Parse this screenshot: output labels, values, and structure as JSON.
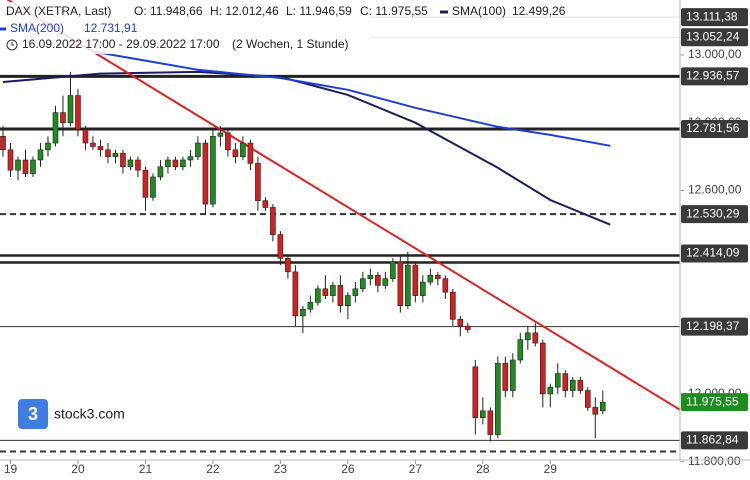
{
  "chart_data": {
    "type": "candlestick",
    "title": "DAX (XETRA, Last)",
    "ohlc_labels": [
      "O: 11.948,66",
      "H: 12.012,46",
      "L: 11.946,59",
      "C: 11.975,55"
    ],
    "range_label": "16.09.2022 17:00 - 29.09.2022 17:00",
    "period_label": "(2 Wochen, 1 Stunde)",
    "logo": "stock3.com",
    "xlim": [
      -0.4,
      90.3
    ],
    "ylim": [
      11805,
      13162
    ],
    "xticks": [
      {
        "value": 1,
        "label": "19"
      },
      {
        "value": 10,
        "label": "20"
      },
      {
        "value": 19,
        "label": "21"
      },
      {
        "value": 28,
        "label": "22"
      },
      {
        "value": 37,
        "label": "23"
      },
      {
        "value": 46,
        "label": "26"
      },
      {
        "value": 55,
        "label": "27"
      },
      {
        "value": 64,
        "label": "28"
      },
      {
        "value": 73,
        "label": "29"
      }
    ],
    "yticks": [
      {
        "value": 13000,
        "label": "13.000,00"
      },
      {
        "value": 12800,
        "label": "12.800,00"
      },
      {
        "value": 12600,
        "label": "12.600,00"
      },
      {
        "value": 12000,
        "label": "12.000,00"
      },
      {
        "value": 11800,
        "label": "11.800,00"
      }
    ],
    "up_color": "#1e8c1e",
    "down_color": "#d42020",
    "open": [
      12760,
      12720,
      12660,
      12690,
      12650,
      12690,
      12720,
      12740,
      12830,
      12800,
      12880,
      12780,
      12740,
      12730,
      12720,
      12700,
      12710,
      12670,
      12690,
      12660,
      12580,
      12640,
      12670,
      12690,
      12670,
      12690,
      12700,
      12740,
      12560,
      12760,
      12770,
      12720,
      12700,
      12740,
      12680,
      12570,
      12550,
      12470,
      12400,
      12360,
      12230,
      12250,
      12270,
      12310,
      12290,
      12320,
      12260,
      12290,
      12310,
      12340,
      12350,
      12320,
      12340,
      12390,
      12260,
      12380,
      12290,
      12330,
      12350,
      12340,
      12300,
      12220,
      12200,
      12080,
      11930,
      11950,
      11880,
      12090,
      12010,
      12100,
      12160,
      12180,
      12150,
      12000,
      12020,
      12060,
      12010,
      12040,
      12010,
      11960,
      11950
    ],
    "high": [
      12790,
      12740,
      12700,
      12720,
      12700,
      12740,
      12760,
      12850,
      12880,
      12950,
      12900,
      12790,
      12760,
      12750,
      12740,
      12720,
      12720,
      12700,
      12700,
      12670,
      12650,
      12690,
      12700,
      12700,
      12700,
      12720,
      12760,
      12750,
      12780,
      12790,
      12780,
      12740,
      12760,
      12750,
      12700,
      12580,
      12560,
      12480,
      12410,
      12380,
      12260,
      12290,
      12320,
      12350,
      12330,
      12350,
      12300,
      12330,
      12360,
      12370,
      12360,
      12360,
      12400,
      12410,
      12420,
      12390,
      12350,
      12370,
      12360,
      12350,
      12310,
      12230,
      12210,
      12100,
      11990,
      11960,
      12110,
      12110,
      12120,
      12180,
      12200,
      12210,
      12160,
      12030,
      12090,
      12070,
      12050,
      12050,
      12020,
      11990,
      12010
    ],
    "low": [
      12700,
      12640,
      12630,
      12640,
      12640,
      12670,
      12700,
      12730,
      12760,
      12790,
      12760,
      12720,
      12720,
      12700,
      12680,
      12680,
      12650,
      12660,
      12640,
      12540,
      12570,
      12630,
      12650,
      12660,
      12660,
      12670,
      12690,
      12530,
      12550,
      12730,
      12700,
      12680,
      12690,
      12660,
      12540,
      12540,
      12450,
      12380,
      12340,
      12200,
      12180,
      12240,
      12260,
      12280,
      12270,
      12240,
      12220,
      12270,
      12300,
      12320,
      12300,
      12310,
      12330,
      12240,
      12250,
      12270,
      12270,
      12320,
      12320,
      12280,
      12200,
      12170,
      12180,
      11880,
      11910,
      11860,
      11870,
      11990,
      11990,
      12090,
      12130,
      12140,
      11960,
      11960,
      12000,
      11990,
      11990,
      12000,
      11950,
      11870,
      11940
    ],
    "close": [
      12720,
      12660,
      12690,
      12650,
      12690,
      12720,
      12740,
      12830,
      12800,
      12880,
      12780,
      12740,
      12730,
      12720,
      12700,
      12710,
      12670,
      12690,
      12660,
      12580,
      12640,
      12670,
      12690,
      12670,
      12690,
      12700,
      12740,
      12560,
      12760,
      12770,
      12720,
      12700,
      12740,
      12680,
      12570,
      12550,
      12470,
      12400,
      12360,
      12230,
      12250,
      12270,
      12310,
      12290,
      12320,
      12260,
      12290,
      12310,
      12340,
      12350,
      12320,
      12340,
      12390,
      12260,
      12380,
      12290,
      12330,
      12350,
      12340,
      12300,
      12220,
      12200,
      12190,
      11930,
      11950,
      11880,
      12090,
      12010,
      12100,
      12160,
      12180,
      12150,
      12000,
      12020,
      12060,
      12010,
      12040,
      12010,
      11960,
      11940,
      11975.55
    ],
    "series": [
      {
        "name": "SMA(100)",
        "color": "#1c1c5e",
        "last_label": "12.499,26",
        "x": [
          0,
          13,
          26,
          37,
          46,
          55,
          66,
          73,
          81
        ],
        "values": [
          12920,
          12945,
          12950,
          12935,
          12882,
          12800,
          12667,
          12572,
          12499.26
        ]
      },
      {
        "name": "SMA(200)",
        "color": "#1f3fd0",
        "last_label": "12.731,91",
        "x": [
          12,
          26,
          37,
          46,
          55,
          66,
          73,
          81
        ],
        "values": [
          13010,
          12956,
          12932,
          12897,
          12844,
          12788,
          12764,
          12731.91
        ]
      }
    ],
    "trendline": {
      "color": "#e02020",
      "x": [
        -0.4,
        90.3
      ],
      "values": [
        13177,
        11953
      ]
    },
    "levels": [
      {
        "value": 13111.38,
        "label": "13.111,38",
        "style": "thin",
        "start": 49
      },
      {
        "value": 13052.24,
        "label": "13.052,24",
        "style": "thin",
        "start": 49
      },
      {
        "value": 12936.57,
        "label": "12.936,57",
        "style": "thick"
      },
      {
        "value": 12781.56,
        "label": "12.781,56",
        "style": "thick"
      },
      {
        "value": 12530.29,
        "label": "12.530,29",
        "style": "dashed"
      },
      {
        "value": 12414.09,
        "label": "12.414,09",
        "style": "double"
      },
      {
        "value": 12198.37,
        "label": "12.198,37",
        "style": "thin"
      },
      {
        "value": 11975.55,
        "label": "11.975,55",
        "style": "price"
      },
      {
        "value": 11862.84,
        "label": "11.862,84",
        "style": "thin"
      },
      {
        "value": 11830,
        "style": "dashed"
      }
    ]
  }
}
